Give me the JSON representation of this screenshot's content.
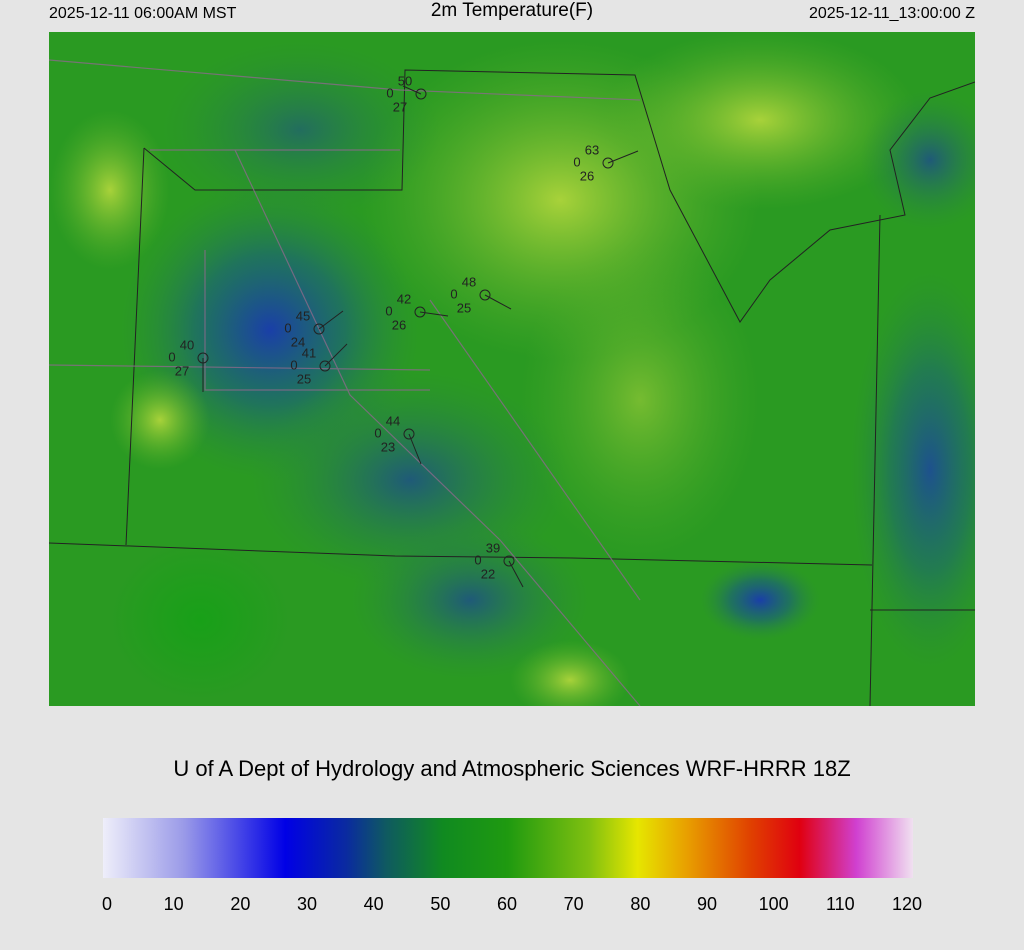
{
  "header": {
    "left": "2025-12-11 06:00AM MST",
    "title": "2m Temperature(F)",
    "right": "2025-12-11_13:00:00 Z"
  },
  "stations": [
    {
      "temp": 50,
      "wind": 0,
      "dew": 27
    },
    {
      "temp": 63,
      "wind": 0,
      "dew": 26
    },
    {
      "temp": 48,
      "wind": 0,
      "dew": 25
    },
    {
      "temp": 42,
      "wind": 0,
      "dew": 26
    },
    {
      "temp": 45,
      "wind": 0,
      "dew": 24
    },
    {
      "temp": 41,
      "wind": 0,
      "dew": 25
    },
    {
      "temp": 40,
      "wind": 0,
      "dew": 27
    },
    {
      "temp": 44,
      "wind": 0,
      "dew": 23
    },
    {
      "temp": 39,
      "wind": 0,
      "dew": 22
    }
  ],
  "credit": "U of A Dept of Hydrology and Atmospheric Sciences WRF-HRRR 18Z",
  "colorbar": {
    "ticks": [
      0,
      10,
      20,
      30,
      40,
      50,
      60,
      70,
      80,
      90,
      100,
      110,
      120
    ]
  }
}
